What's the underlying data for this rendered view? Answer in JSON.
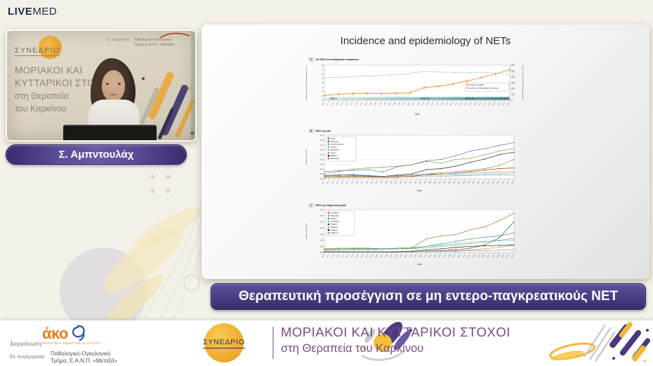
{
  "header": {
    "logo_bold": "LIVE",
    "logo_light": "MED"
  },
  "video": {
    "poster": {
      "synedrio": "ΣΥΝΕΔΡΙΟ",
      "title_line1": "ΜΟΡΙΑΚΟΙ ΚΑΙ",
      "title_line2": "ΚΥΤΤΑΡΙΚΟΙ ΣΤΟΧΟΙ",
      "title_line3": "στη Θεραπεία",
      "title_line4": "του Καρκίνου",
      "partner_label": "Σε συνεργασία:",
      "partner_line1": "Παθολογικό-Ογκολογικό",
      "partner_line2": "Τμήμα Ε.Α.Ν.Π. «Μεταξά»"
    },
    "speaker_name": "Σ. Αμπντουλάχ"
  },
  "slide": {
    "title": "Incidence and epidemiology of NETs"
  },
  "banner": {
    "text": "Θεραπευτική προσέγγιση σε μη εντερο-παγκρεατικούς NET"
  },
  "footer": {
    "organizer_label": "Διοργάνωση:",
    "organizer_logo_text": "άκο",
    "organizer_tagline": "ΘΕΡΑΠΕΙΑ ΣΩΜΑΤΟΣ & ΨΥΧΗΣ",
    "partner_label": "Σε συνεργασία:",
    "partner_line1": "Παθολογικό-Ογκολογικό",
    "partner_line2": "Τμήμα, Ε.Α.Ν.Π. «Μεταξά»",
    "synedrio": "ΣΥΝΕΔΡΙΟ",
    "congress_line1": "ΜΟΡΙΑΚΟΙ ΚΑΙ ΚΥΤΤΑΡΙΚΟΙ ΣΤΟΧΟΙ",
    "congress_line2": "στη Θεραπεία του Καρκίνου"
  },
  "colors": {
    "accent_purple": "#4a3c82",
    "accent_orange": "#ef9f2d",
    "congress_purple": "#7c4a8c",
    "akos_orange": "#e87a1a",
    "akos_blue": "#2f5fa8"
  },
  "chart_data": [
    {
      "type": "line",
      "panel_label": "A",
      "title": "All NETs and malignant neoplasms",
      "xlabel": "Year",
      "ylabel_left": "Incidence per 100,000 for Neuroendocrine Tumors",
      "ylabel_right": "Incidence per 100,000 for All Malignant Neoplasms",
      "x_axis": {
        "start": 1973,
        "end": 2012
      },
      "ylim": [
        0,
        8
      ],
      "ytick_step": 1,
      "ylim_right": [
        0,
        600
      ],
      "ytick_step_right": 100,
      "legend_position": "bottom-right",
      "x": [
        1973,
        1976,
        1979,
        1982,
        1985,
        1988,
        1991,
        1994,
        1997,
        2000,
        2003,
        2006,
        2009,
        2012
      ],
      "series": [
        {
          "name": "Incidence of NETs",
          "color": "#e8912d",
          "axis": "left",
          "error_bars": true,
          "values": [
            1.1,
            1.4,
            1.5,
            1.6,
            1.5,
            1.6,
            1.7,
            2.9,
            3.2,
            3.7,
            4.4,
            5.2,
            6.0,
            7.0
          ]
        },
        {
          "name": "Incidence of all malignant neoplasms",
          "color": "#8cc6bf",
          "axis": "right",
          "dashed": true,
          "values": [
            385,
            395,
            405,
            415,
            425,
            440,
            460,
            495,
            485,
            475,
            470,
            480,
            465,
            440
          ]
        }
      ],
      "bands": [
        {
          "label": "SEER 9"
        },
        {
          "label": "(SEER 13)"
        },
        {
          "label": "(SEER 18)"
        }
      ]
    },
    {
      "type": "line",
      "panel_label": "B",
      "title": "NETs by site",
      "xlabel": "Year",
      "ylabel_left": "Incidence per 100,000",
      "x_axis": {
        "start": 1973,
        "end": 2012
      },
      "ylim": [
        0,
        1.8
      ],
      "ytick_step": 0.2,
      "legend_position": "top-left",
      "grid": true,
      "x": [
        1973,
        1976,
        1979,
        1982,
        1985,
        1988,
        1991,
        1994,
        1997,
        2000,
        2003,
        2006,
        2009,
        2012
      ],
      "series": [
        {
          "name": "Lung",
          "color": "#4b79a8",
          "values": [
            0.3,
            0.33,
            0.35,
            0.38,
            0.28,
            0.5,
            0.58,
            0.75,
            0.8,
            0.95,
            1.15,
            1.25,
            1.38,
            1.5
          ]
        },
        {
          "name": "Stomach",
          "color": "#8b3a1a",
          "values": [
            0.05,
            0.06,
            0.07,
            0.08,
            0.07,
            0.08,
            0.1,
            0.16,
            0.2,
            0.24,
            0.3,
            0.36,
            0.42,
            0.45
          ]
        },
        {
          "name": "Small Intestine",
          "color": "#7e9c30",
          "values": [
            0.22,
            0.3,
            0.4,
            0.45,
            0.48,
            0.52,
            0.58,
            0.72,
            0.65,
            0.8,
            0.85,
            1.0,
            1.15,
            1.25
          ]
        },
        {
          "name": "Cecum",
          "color": "#56c2e0",
          "values": [
            0.1,
            0.14,
            0.18,
            0.15,
            0.1,
            0.12,
            0.14,
            0.15,
            0.15,
            0.16,
            0.18,
            0.2,
            0.2,
            0.25
          ]
        },
        {
          "name": "Appendix",
          "color": "#b0a584",
          "values": [
            0.05,
            0.05,
            0.06,
            0.06,
            0.05,
            0.06,
            0.08,
            0.1,
            0.1,
            0.12,
            0.13,
            0.15,
            0.16,
            0.16
          ]
        },
        {
          "name": "Colon",
          "color": "#e8862b",
          "values": [
            0.08,
            0.1,
            0.1,
            0.12,
            0.1,
            0.12,
            0.15,
            0.2,
            0.2,
            0.22,
            0.25,
            0.26,
            0.28,
            0.3
          ]
        },
        {
          "name": "Rectum",
          "color": "#1a1a1a",
          "values": [
            0.14,
            0.15,
            0.15,
            0.12,
            0.1,
            0.15,
            0.2,
            0.38,
            0.42,
            0.52,
            0.68,
            0.82,
            1.0,
            1.1
          ]
        },
        {
          "name": "Pancreas",
          "color": "#8f8a68",
          "values": [
            0.1,
            0.1,
            0.12,
            0.1,
            0.1,
            0.12,
            0.15,
            0.2,
            0.25,
            0.3,
            0.35,
            0.42,
            0.55,
            0.8
          ]
        }
      ]
    },
    {
      "type": "line",
      "panel_label": "C",
      "title": "NETs by stage and grade",
      "xlabel": "Year",
      "ylabel_left": "Incidence per 100,000",
      "x_axis": {
        "start": 1973,
        "end": 2012
      },
      "ylim": [
        0,
        3.5
      ],
      "ytick_step": 0.5,
      "legend_position": "top-left",
      "grid": true,
      "x": [
        1973,
        1976,
        1979,
        1982,
        1985,
        1988,
        1991,
        1994,
        1997,
        2000,
        2003,
        2006,
        2009,
        2012
      ],
      "series": [
        {
          "name": "Localized",
          "color": "#a8722c",
          "values": [
            0.3,
            0.35,
            0.35,
            0.35,
            0.3,
            0.35,
            0.4,
            1.1,
            1.35,
            1.45,
            1.85,
            2.1,
            2.6,
            3.2
          ]
        },
        {
          "name": "Regional",
          "color": "#9aa832",
          "values": [
            0.2,
            0.25,
            0.25,
            0.28,
            0.25,
            0.28,
            0.3,
            0.4,
            0.5,
            0.6,
            0.72,
            0.85,
            1.0,
            1.15
          ]
        },
        {
          "name": "Distant",
          "color": "#2f9486",
          "values": [
            0.25,
            0.28,
            0.3,
            0.3,
            0.3,
            0.3,
            0.35,
            0.5,
            0.7,
            0.9,
            1.1,
            1.25,
            1.35,
            1.6
          ]
        },
        {
          "name": "Unstaged",
          "color": "#63c6de",
          "values": [
            0.1,
            0.15,
            0.18,
            0.2,
            0.25,
            0.3,
            0.4,
            0.5,
            0.6,
            0.72,
            0.85,
            0.9,
            0.95,
            1.0
          ]
        },
        {
          "name": "Grade I",
          "color": "#1d4e79",
          "values": [
            0.03,
            0.03,
            0.03,
            0.03,
            0.03,
            0.05,
            0.05,
            0.1,
            0.15,
            0.22,
            0.35,
            0.6,
            1.2,
            2.5
          ]
        },
        {
          "name": "Grade II",
          "color": "#e8862b",
          "values": [
            0.02,
            0.02,
            0.02,
            0.02,
            0.02,
            0.03,
            0.05,
            0.08,
            0.1,
            0.15,
            0.2,
            0.3,
            0.42,
            0.6
          ]
        },
        {
          "name": "Grade III",
          "color": "#1a1a1a",
          "values": [
            0.05,
            0.05,
            0.05,
            0.05,
            0.05,
            0.06,
            0.1,
            0.2,
            0.3,
            0.4,
            0.5,
            0.55,
            0.58,
            0.6
          ]
        },
        {
          "name": "Grade IV",
          "color": "#8c8c8c",
          "values": [
            0.02,
            0.02,
            0.02,
            0.02,
            0.02,
            0.02,
            0.05,
            0.08,
            0.1,
            0.1,
            0.14,
            0.15,
            0.18,
            0.2
          ]
        }
      ]
    }
  ]
}
